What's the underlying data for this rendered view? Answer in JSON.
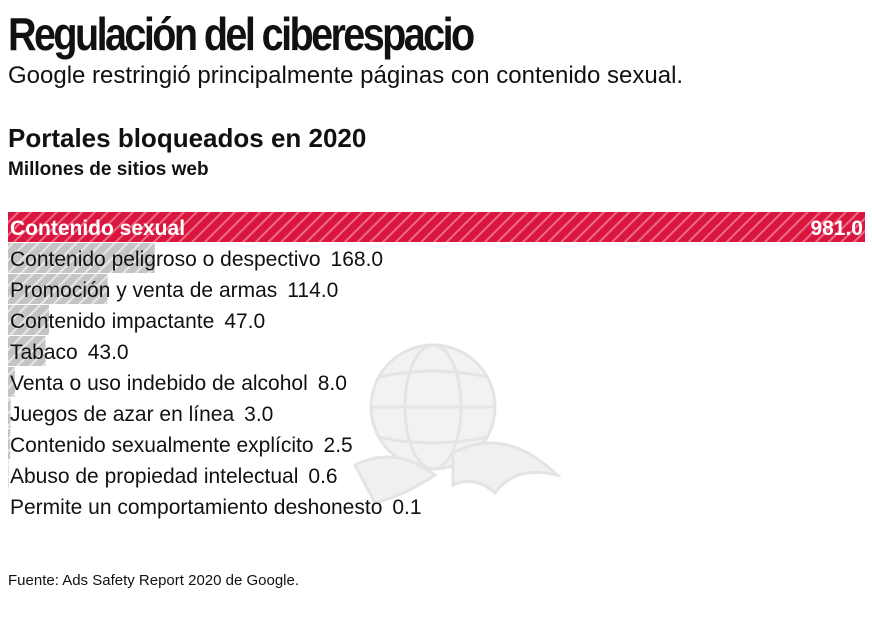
{
  "header": {
    "title": "Regulación del ciberespacio",
    "subtitle": "Google restringió principalmente páginas con contenido sexual."
  },
  "chart_data": {
    "type": "bar",
    "orientation": "horizontal",
    "title": "Portales bloqueados en 2020",
    "subtitle": "Millones de sitios web",
    "categories": [
      "Contenido sexual",
      "Contenido peligroso o despectivo",
      "Promoción y venta de armas",
      "Contenido impactante",
      "Tabaco",
      "Venta o uso indebido de alcohol",
      "Juegos de azar en línea",
      "Contenido sexualmente explícito",
      "Abuso de propiedad intelectual",
      "Permite un comportamiento deshonesto"
    ],
    "values": [
      981.0,
      168.0,
      114.0,
      47.0,
      43.0,
      8.0,
      3.0,
      2.5,
      0.6,
      0.1
    ],
    "value_labels": [
      "981.0",
      "168.0",
      "114.0",
      "47.0",
      "43.0",
      "8.0",
      "3.0",
      "2.5",
      "0.6",
      "0.1"
    ],
    "xlim": [
      0,
      981
    ],
    "grid": false,
    "colors": {
      "highlight": "#d9163e",
      "highlight_stripe": "#f06a86",
      "bar": "#c4c4c4",
      "bar_stripe": "#e6e6e6"
    }
  },
  "footer": {
    "source": "Fuente: Ads Safety Report 2020 de Google."
  }
}
